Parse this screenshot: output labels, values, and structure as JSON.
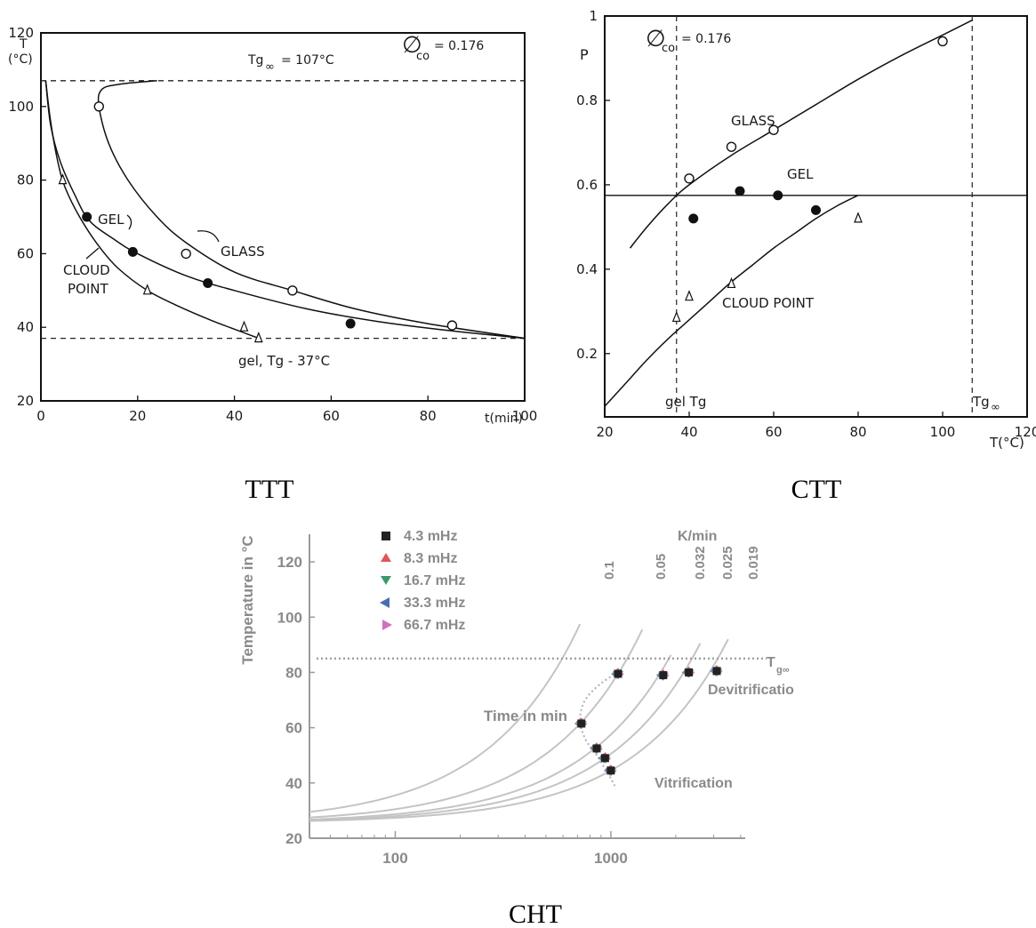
{
  "captions": {
    "ttt": "TTT",
    "ctt": "CTT",
    "cht": "CHT"
  },
  "chart_data": [
    {
      "id": "ttt",
      "type": "line",
      "ylabel": "T",
      "ylabel_unit": "(°C)",
      "xlabel": "t(min)",
      "xlim": [
        0,
        100
      ],
      "ylim": [
        20,
        120
      ],
      "x_ticks": [
        "0",
        "20",
        "40",
        "60",
        "80",
        "100"
      ],
      "y_ticks": [
        "20",
        "40",
        "60",
        "80",
        "100",
        "120"
      ],
      "phi": {
        "symbol": "∅",
        "sub": "co",
        "value": "= 0.176"
      },
      "tg_inf_label": {
        "main": "Tg",
        "sub": "∞",
        "value": "= 107°C"
      },
      "gel_tg_label": "gel, Tg - 37°C",
      "hlines": [
        107,
        37
      ],
      "series": [
        {
          "name": "GLASS",
          "marker": "open-circle",
          "x": [
            12,
            30,
            52,
            85
          ],
          "y": [
            100,
            60,
            50,
            40.5
          ],
          "curve": [
            [
              24,
              107
            ],
            [
              16,
              106
            ],
            [
              12.5,
              104.5
            ],
            [
              12,
              100
            ],
            [
              14,
              90
            ],
            [
              18,
              80
            ],
            [
              24,
              70
            ],
            [
              30,
              63
            ],
            [
              40,
              55
            ],
            [
              52,
              50
            ],
            [
              65,
              45
            ],
            [
              80,
              41
            ],
            [
              100,
              37
            ]
          ]
        },
        {
          "name": "GEL",
          "marker": "filled-circle",
          "x": [
            9.5,
            19,
            34.5,
            64
          ],
          "y": [
            70,
            60.5,
            52,
            41
          ],
          "curve": [
            [
              1,
              107
            ],
            [
              2,
              95
            ],
            [
              4,
              85
            ],
            [
              7,
              76
            ],
            [
              10,
              69
            ],
            [
              15,
              64
            ],
            [
              20,
              60
            ],
            [
              30,
              54
            ],
            [
              40,
              50
            ],
            [
              55,
              45
            ],
            [
              70,
              41.5
            ],
            [
              85,
              39
            ],
            [
              100,
              37
            ]
          ]
        },
        {
          "name": "CLOUD POINT",
          "marker": "open-triangle",
          "x": [
            4.5,
            22,
            42,
            45
          ],
          "y": [
            80,
            50,
            40,
            37
          ],
          "curve": [
            [
              1,
              107
            ],
            [
              2,
              96
            ],
            [
              3.5,
              85
            ],
            [
              5,
              78
            ],
            [
              8,
              70
            ],
            [
              12,
              62
            ],
            [
              16,
              56
            ],
            [
              22,
              50
            ],
            [
              28,
              46
            ],
            [
              35,
              42
            ],
            [
              41,
              39
            ],
            [
              45,
              37
            ]
          ]
        }
      ],
      "annotations": [
        "GEL",
        "GLASS",
        "CLOUD",
        "POINT"
      ]
    },
    {
      "id": "ctt",
      "type": "line",
      "ylabel": "P",
      "xlabel": "T(°C)",
      "xlim": [
        20,
        120
      ],
      "ylim": [
        0.05,
        1.0
      ],
      "x_ticks": [
        "20",
        "40",
        "60",
        "80",
        "100",
        "120"
      ],
      "y_ticks": [
        "0.2",
        "0.4",
        "0.6",
        "0.8",
        "1"
      ],
      "phi": {
        "symbol": "∅",
        "sub": "co",
        "value": "= 0.176"
      },
      "gel_p": 0.575,
      "vlines": [
        37,
        107
      ],
      "vline_labels": {
        "gel_tg": "gel Tg",
        "tg_inf": "Tg",
        "tg_inf_sub": "∞"
      },
      "series": [
        {
          "name": "GLASS",
          "marker": "open-circle",
          "x": [
            40,
            50,
            60,
            100
          ],
          "y": [
            0.615,
            0.69,
            0.73,
            0.94
          ],
          "curve": [
            [
              26,
              0.45
            ],
            [
              30,
              0.5
            ],
            [
              35,
              0.555
            ],
            [
              40,
              0.6
            ],
            [
              50,
              0.67
            ],
            [
              60,
              0.73
            ],
            [
              70,
              0.79
            ],
            [
              80,
              0.85
            ],
            [
              90,
              0.905
            ],
            [
              100,
              0.955
            ],
            [
              107,
              0.99
            ]
          ]
        },
        {
          "name": "GEL",
          "marker": "filled-circle",
          "x": [
            41,
            52,
            61,
            70
          ],
          "y": [
            0.52,
            0.585,
            0.575,
            0.54
          ],
          "curve": []
        },
        {
          "name": "CLOUD POINT",
          "marker": "open-triangle",
          "x": [
            37,
            40,
            50,
            80
          ],
          "y": [
            0.285,
            0.335,
            0.365,
            0.52
          ],
          "curve": [
            [
              20,
              0.075
            ],
            [
              25,
              0.13
            ],
            [
              30,
              0.185
            ],
            [
              35,
              0.235
            ],
            [
              40,
              0.28
            ],
            [
              45,
              0.325
            ],
            [
              50,
              0.37
            ],
            [
              55,
              0.41
            ],
            [
              60,
              0.45
            ],
            [
              65,
              0.485
            ],
            [
              70,
              0.52
            ],
            [
              75,
              0.55
            ],
            [
              80,
              0.575
            ]
          ]
        }
      ],
      "annotations": [
        "GLASS",
        "GEL",
        "CLOUD POINT"
      ]
    },
    {
      "id": "cht",
      "type": "line",
      "xscale": "log",
      "xlabel": "Time in min",
      "ylabel": "Temperature in °C",
      "xlim": [
        40,
        4200
      ],
      "ylim": [
        20,
        130
      ],
      "x_ticks": [
        "100",
        "1000"
      ],
      "y_ticks": [
        "20",
        "40",
        "60",
        "80",
        "100",
        "120"
      ],
      "legend_title": "K/min",
      "rate_labels": [
        "0.1",
        "0.05",
        "0.032",
        "0.025",
        "0.019"
      ],
      "rates": [
        0.1,
        0.05,
        0.032,
        0.025,
        0.019
      ],
      "tg_label": "T",
      "tg_sub": "g∞",
      "tg": 85,
      "legend": [
        {
          "label": "4.3 mHz",
          "color": "#222222",
          "marker": "square"
        },
        {
          "label": "8.3 mHz",
          "color": "#e05555",
          "marker": "triangle-up"
        },
        {
          "label": "16.7 mHz",
          "color": "#3a9a6a",
          "marker": "triangle-down"
        },
        {
          "label": "33.3 mHz",
          "color": "#4a6fb0",
          "marker": "triangle-left"
        },
        {
          "label": "66.7 mHz",
          "color": "#d070c0",
          "marker": "triangle-right"
        }
      ],
      "points": [
        {
          "x": 730,
          "y": 61.5
        },
        {
          "x": 860,
          "y": 52.5
        },
        {
          "x": 940,
          "y": 49
        },
        {
          "x": 1000,
          "y": 44.5
        },
        {
          "x": 1080,
          "y": 79.5
        },
        {
          "x": 1750,
          "y": 79
        },
        {
          "x": 2300,
          "y": 80
        },
        {
          "x": 3100,
          "y": 80.5
        }
      ],
      "annotations": [
        "Devitrificatio",
        "Vitrification"
      ]
    }
  ]
}
